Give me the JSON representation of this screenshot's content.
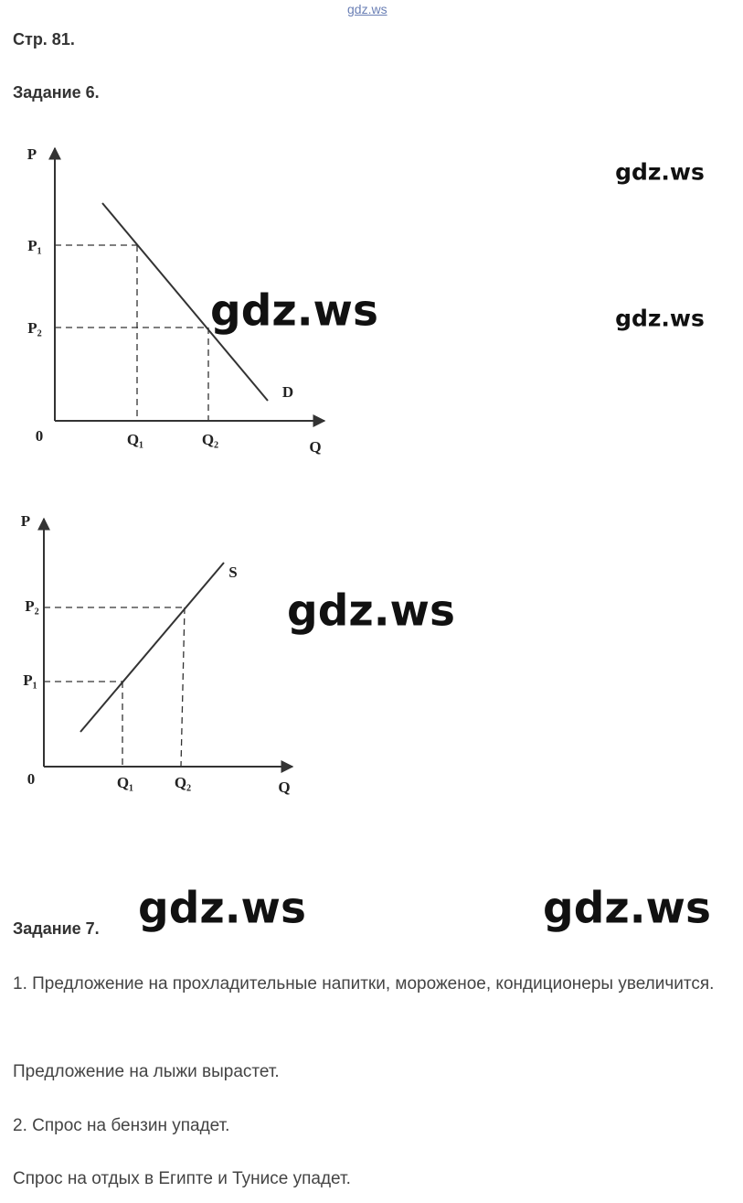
{
  "header": {
    "link": "gdz.ws",
    "page": "Стр. 81."
  },
  "task6": {
    "title": "Задание 6.",
    "demand_graph": {
      "y_axis": "P",
      "x_axis": "Q",
      "origin": "0",
      "p1": "P₁",
      "p2": "P₂",
      "q1": "Q₁",
      "q2": "Q₂",
      "curve": "D"
    },
    "supply_graph": {
      "y_axis": "P",
      "x_axis": "Q",
      "origin": "0",
      "p1": "P₁",
      "p2": "P₂",
      "q1": "Q₁",
      "q2": "Q₂",
      "curve": "S"
    }
  },
  "watermarks": [
    "gdz.ws",
    "gdz.ws",
    "gdz.ws",
    "gdz.ws",
    "gdz.ws",
    "gdz.ws"
  ],
  "task7": {
    "title": "Задание 7.",
    "paragraphs": [
      "1. Предложение на прохладительные напитки, мороженое, кондиционеры увеличится.",
      "Предложение на лыжи вырастет.",
      "2. Спрос на бензин упадет.",
      "Спрос на отдых в Египте и Тунисе упадет."
    ]
  }
}
